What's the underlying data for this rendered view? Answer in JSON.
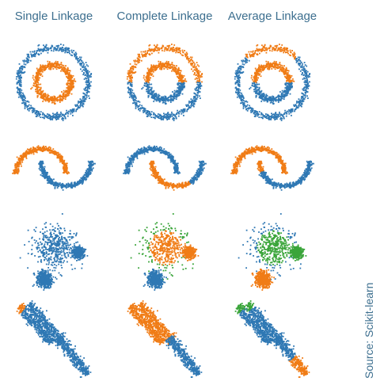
{
  "figure": {
    "source": "Source: Scikit-learn",
    "column_titles": [
      "Single Linkage",
      "Complete Linkage",
      "Average Linkage"
    ]
  },
  "colors": {
    "cluster_0": "#2f78b4",
    "cluster_1": "#f07c16",
    "cluster_2": "#3aa53a"
  },
  "chart_data": {
    "type": "scatter",
    "title": "",
    "xlabel": "",
    "ylabel": "",
    "grid": false,
    "axes_visible": false,
    "columns": [
      "Single Linkage",
      "Complete Linkage",
      "Average Linkage"
    ],
    "rows": [
      {
        "dataset": "noisy circles",
        "structures": [
          {
            "shape": "ring",
            "cx": 0,
            "cy": 0,
            "r": 1.0
          },
          {
            "shape": "ring",
            "cx": 0,
            "cy": 0,
            "r": 0.5
          }
        ],
        "assignments": {
          "Single Linkage": [
            {
              "structure": 0,
              "from_deg": 0,
              "to_deg": 360,
              "cluster": 0
            },
            {
              "structure": 1,
              "from_deg": 0,
              "to_deg": 360,
              "cluster": 1
            }
          ],
          "Complete Linkage": [
            {
              "structure": 0,
              "from_deg": 0,
              "to_deg": 180,
              "cluster": 1
            },
            {
              "structure": 0,
              "from_deg": 180,
              "to_deg": 360,
              "cluster": 0
            },
            {
              "structure": 1,
              "from_deg": 0,
              "to_deg": 180,
              "cluster": 1
            },
            {
              "structure": 1,
              "from_deg": 180,
              "to_deg": 360,
              "cluster": 0
            }
          ],
          "Average Linkage": [
            {
              "structure": 0,
              "from_deg": 45,
              "to_deg": 135,
              "cluster": 1
            },
            {
              "structure": 0,
              "from_deg": 135,
              "to_deg": 405,
              "cluster": 0
            },
            {
              "structure": 1,
              "from_deg": 0,
              "to_deg": 180,
              "cluster": 1
            },
            {
              "structure": 1,
              "from_deg": 180,
              "to_deg": 360,
              "cluster": 0
            }
          ]
        }
      },
      {
        "dataset": "noisy moons",
        "structures": [
          {
            "shape": "arc",
            "cx": 0,
            "cy": 0,
            "r": 1.0,
            "from_deg": 0,
            "to_deg": 180
          },
          {
            "shape": "arc",
            "cx": 1,
            "cy": 0.5,
            "r": 1.0,
            "from_deg": 180,
            "to_deg": 360
          }
        ],
        "assignments": {
          "Single Linkage": [
            {
              "structure": 0,
              "from_deg": 0,
              "to_deg": 180,
              "cluster": 1
            },
            {
              "structure": 1,
              "from_deg": 180,
              "to_deg": 360,
              "cluster": 0
            }
          ],
          "Complete Linkage": [
            {
              "structure": 0,
              "from_deg": 0,
              "to_deg": 180,
              "cluster": 0
            },
            {
              "structure": 1,
              "from_deg": 180,
              "to_deg": 300,
              "cluster": 1
            },
            {
              "structure": 1,
              "from_deg": 300,
              "to_deg": 360,
              "cluster": 0
            }
          ],
          "Average Linkage": [
            {
              "structure": 0,
              "from_deg": 0,
              "to_deg": 180,
              "cluster": 1
            },
            {
              "structure": 1,
              "from_deg": 180,
              "to_deg": 205,
              "cluster": 1
            },
            {
              "structure": 1,
              "from_deg": 205,
              "to_deg": 360,
              "cluster": 0
            }
          ]
        }
      },
      {
        "dataset": "blobs with varied variances",
        "structures": [
          {
            "shape": "blob",
            "cx": -0.1,
            "cy": 0.5,
            "sd": 0.42
          },
          {
            "shape": "blob",
            "cx": 0.85,
            "cy": 0.32,
            "sd": 0.11
          },
          {
            "shape": "blob",
            "cx": -0.55,
            "cy": -0.8,
            "sd": 0.16
          }
        ],
        "assignments": {
          "Single Linkage": [
            {
              "structure": 0,
              "cluster": 0
            },
            {
              "structure": 1,
              "cluster": 0
            },
            {
              "structure": 2,
              "cluster": 0
            }
          ],
          "Complete Linkage": [
            {
              "structure": 0,
              "cluster": 1,
              "fringe_cluster": 2
            },
            {
              "structure": 1,
              "cluster": 1
            },
            {
              "structure": 2,
              "cluster": 0
            }
          ],
          "Average Linkage": [
            {
              "structure": 0,
              "cluster": 2,
              "fringe_cluster": 0
            },
            {
              "structure": 1,
              "cluster": 2
            },
            {
              "structure": 2,
              "cluster": 1
            }
          ]
        }
      },
      {
        "dataset": "anisotropic blobs",
        "structures": [
          {
            "shape": "line",
            "x0": -1.0,
            "y0": 0.9,
            "x1": -0.1,
            "y1": -0.1,
            "width": 0.07
          },
          {
            "shape": "line",
            "x0": -0.75,
            "y0": 0.95,
            "x1": 0.15,
            "y1": -0.05,
            "width": 0.07
          },
          {
            "shape": "line",
            "x0": 0.05,
            "y0": 0.05,
            "x1": 0.85,
            "y1": -0.95,
            "width": 0.07
          }
        ],
        "assignments": {
          "Single Linkage": [
            {
              "structure": 0,
              "cluster": 0,
              "start_cluster": 1
            },
            {
              "structure": 1,
              "cluster": 0
            },
            {
              "structure": 2,
              "cluster": 0
            }
          ],
          "Complete Linkage": [
            {
              "structure": 0,
              "cluster": 1
            },
            {
              "structure": 1,
              "cluster": 1
            },
            {
              "structure": 2,
              "cluster": 0
            }
          ],
          "Average Linkage": [
            {
              "structure": 0,
              "cluster": 0,
              "start_cluster": 2
            },
            {
              "structure": 1,
              "cluster": 0,
              "start_cluster": 2
            },
            {
              "structure": 2,
              "cluster": 0,
              "end_cluster": 1
            }
          ]
        }
      }
    ]
  }
}
